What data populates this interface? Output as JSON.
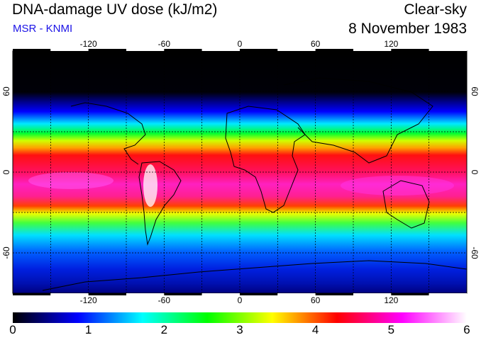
{
  "header": {
    "title": "DNA-damage UV dose (kJ/m2)",
    "source": "MSR - KNMI",
    "condition": "Clear-sky",
    "date": "8 November 1983"
  },
  "map": {
    "projection": "equirectangular",
    "lon_range": [
      -180,
      180
    ],
    "lat_range": [
      -90,
      90
    ],
    "gridlines": "dashed",
    "lon_ticks": [
      "-120",
      "-60",
      "0",
      "60",
      "120"
    ],
    "lat_ticks": [
      "60",
      "0",
      "-60"
    ]
  },
  "colorbar": {
    "min": 0,
    "max": 6,
    "labels": [
      "0",
      "1",
      "2",
      "3",
      "4",
      "5",
      "6"
    ],
    "stops": [
      "#000000",
      "#0000ff",
      "#00ffff",
      "#00ff00",
      "#ffff00",
      "#ff0000",
      "#ff00ff",
      "#ffffff"
    ]
  }
}
